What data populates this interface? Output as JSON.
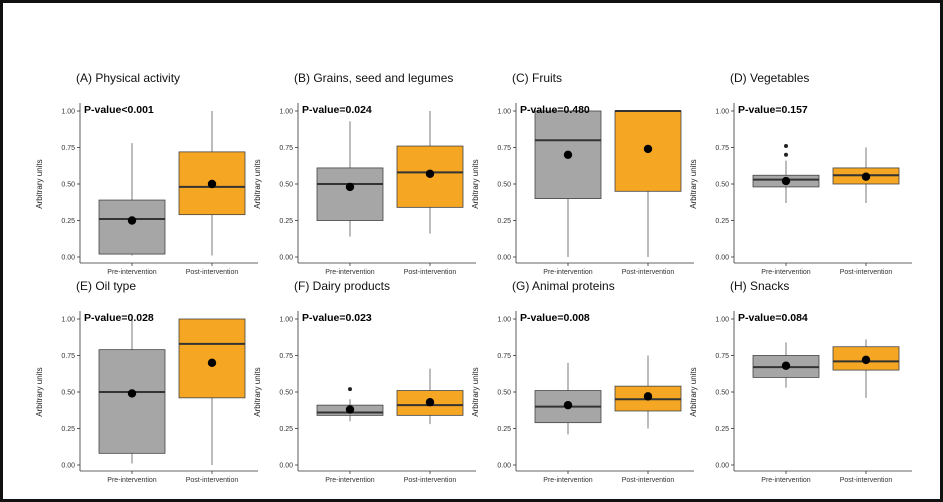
{
  "colors": {
    "pre": "#a6a6a6",
    "post": "#f5a623",
    "whisker": "#7a7a7a",
    "median": "#333333",
    "mean": "#000000",
    "axis": "#333333"
  },
  "chart_data": [
    {
      "type": "box",
      "title": "(A) Physical activity",
      "pvalue": "P-value<0.001",
      "ylabel": "Arbitrary units",
      "categories": [
        "Pre-intervention",
        "Post-intervention"
      ],
      "ylim": [
        0,
        1
      ],
      "yticks": [
        "0.00",
        "0.25",
        "0.50",
        "0.75",
        "1.00"
      ],
      "boxes": [
        {
          "group": "Pre-intervention",
          "min": 0.01,
          "q1": 0.02,
          "median": 0.26,
          "q3": 0.39,
          "max": 0.78,
          "mean": 0.25,
          "outliers": []
        },
        {
          "group": "Post-intervention",
          "min": 0.01,
          "q1": 0.29,
          "median": 0.48,
          "q3": 0.72,
          "max": 1.0,
          "mean": 0.5,
          "outliers": []
        }
      ]
    },
    {
      "type": "box",
      "title": "(B) Grains, seed and legumes",
      "pvalue": "P-value=0.024",
      "ylabel": "Arbitrary units",
      "categories": [
        "Pre-intervention",
        "Post-intervention"
      ],
      "ylim": [
        0,
        1
      ],
      "yticks": [
        "0.00",
        "0.25",
        "0.50",
        "0.75",
        "1.00"
      ],
      "boxes": [
        {
          "group": "Pre-intervention",
          "min": 0.14,
          "q1": 0.25,
          "median": 0.5,
          "q3": 0.61,
          "max": 0.93,
          "mean": 0.48,
          "outliers": []
        },
        {
          "group": "Post-intervention",
          "min": 0.16,
          "q1": 0.34,
          "median": 0.58,
          "q3": 0.76,
          "max": 1.0,
          "mean": 0.57,
          "outliers": []
        }
      ]
    },
    {
      "type": "box",
      "title": "(C) Fruits",
      "pvalue": "P-value=0.480",
      "ylabel": "Arbitrary units",
      "categories": [
        "Pre-intervention",
        "Post-intervention"
      ],
      "ylim": [
        0,
        1
      ],
      "yticks": [
        "0.00",
        "0.25",
        "0.50",
        "0.75",
        "1.00"
      ],
      "boxes": [
        {
          "group": "Pre-intervention",
          "min": 0.0,
          "q1": 0.4,
          "median": 0.8,
          "q3": 1.0,
          "max": 1.0,
          "mean": 0.7,
          "outliers": []
        },
        {
          "group": "Post-intervention",
          "min": 0.0,
          "q1": 0.45,
          "median": 1.0,
          "q3": 1.0,
          "max": 1.0,
          "mean": 0.74,
          "outliers": []
        }
      ]
    },
    {
      "type": "box",
      "title": "(D) Vegetables",
      "pvalue": "P-value=0.157",
      "ylabel": "Arbitrary units",
      "categories": [
        "Pre-intervention",
        "Post-intervention"
      ],
      "ylim": [
        0,
        1
      ],
      "yticks": [
        "0.00",
        "0.25",
        "0.50",
        "0.75",
        "1.00"
      ],
      "boxes": [
        {
          "group": "Pre-intervention",
          "min": 0.37,
          "q1": 0.48,
          "median": 0.53,
          "q3": 0.56,
          "max": 0.66,
          "mean": 0.52,
          "outliers": [
            0.7,
            0.76
          ]
        },
        {
          "group": "Post-intervention",
          "min": 0.37,
          "q1": 0.5,
          "median": 0.56,
          "q3": 0.61,
          "max": 0.75,
          "mean": 0.55,
          "outliers": []
        }
      ]
    },
    {
      "type": "box",
      "title": "(E) Oil type",
      "pvalue": "P-value=0.028",
      "ylabel": "Arbitrary units",
      "categories": [
        "Pre-intervention",
        "Post-intervention"
      ],
      "ylim": [
        0,
        1
      ],
      "yticks": [
        "0.00",
        "0.25",
        "0.50",
        "0.75",
        "1.00"
      ],
      "boxes": [
        {
          "group": "Pre-intervention",
          "min": 0.01,
          "q1": 0.08,
          "median": 0.5,
          "q3": 0.79,
          "max": 1.0,
          "mean": 0.49,
          "outliers": []
        },
        {
          "group": "Post-intervention",
          "min": 0.0,
          "q1": 0.46,
          "median": 0.83,
          "q3": 1.0,
          "max": 1.0,
          "mean": 0.7,
          "outliers": []
        }
      ]
    },
    {
      "type": "box",
      "title": "(F) Dairy products",
      "pvalue": "P-value=0.023",
      "ylabel": "Arbitrary units",
      "categories": [
        "Pre-intervention",
        "Post-intervention"
      ],
      "ylim": [
        0,
        1
      ],
      "yticks": [
        "0.00",
        "0.25",
        "0.50",
        "0.75",
        "1.00"
      ],
      "boxes": [
        {
          "group": "Pre-intervention",
          "min": 0.3,
          "q1": 0.34,
          "median": 0.36,
          "q3": 0.41,
          "max": 0.45,
          "mean": 0.38,
          "outliers": [
            0.52
          ]
        },
        {
          "group": "Post-intervention",
          "min": 0.28,
          "q1": 0.34,
          "median": 0.41,
          "q3": 0.51,
          "max": 0.66,
          "mean": 0.43,
          "outliers": []
        }
      ]
    },
    {
      "type": "box",
      "title": "(G) Animal proteins",
      "pvalue": "P-value=0.008",
      "ylabel": "Arbitrary units",
      "categories": [
        "Pre-intervention",
        "Post-intervention"
      ],
      "ylim": [
        0,
        1
      ],
      "yticks": [
        "0.00",
        "0.25",
        "0.50",
        "0.75",
        "1.00"
      ],
      "boxes": [
        {
          "group": "Pre-intervention",
          "min": 0.21,
          "q1": 0.29,
          "median": 0.4,
          "q3": 0.51,
          "max": 0.7,
          "mean": 0.41,
          "outliers": []
        },
        {
          "group": "Post-intervention",
          "min": 0.25,
          "q1": 0.37,
          "median": 0.45,
          "q3": 0.54,
          "max": 0.75,
          "mean": 0.47,
          "outliers": []
        }
      ]
    },
    {
      "type": "box",
      "title": "(H) Snacks",
      "pvalue": "P-value=0.084",
      "ylabel": "Arbitrary units",
      "categories": [
        "Pre-intervention",
        "Post-intervention"
      ],
      "ylim": [
        0,
        1
      ],
      "yticks": [
        "0.00",
        "0.25",
        "0.50",
        "0.75",
        "1.00"
      ],
      "boxes": [
        {
          "group": "Pre-intervention",
          "min": 0.53,
          "q1": 0.6,
          "median": 0.67,
          "q3": 0.75,
          "max": 0.84,
          "mean": 0.68,
          "outliers": []
        },
        {
          "group": "Post-intervention",
          "min": 0.46,
          "q1": 0.65,
          "median": 0.71,
          "q3": 0.81,
          "max": 0.86,
          "mean": 0.72,
          "outliers": []
        }
      ]
    }
  ]
}
